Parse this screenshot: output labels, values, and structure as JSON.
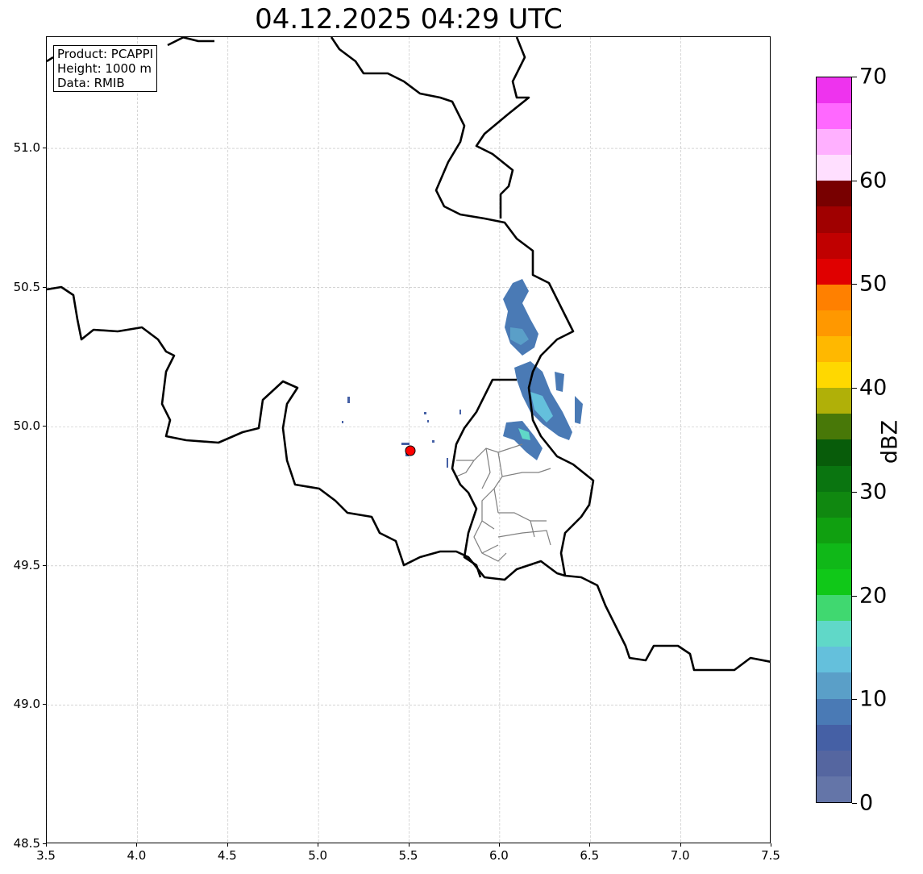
{
  "title": "04.12.2025 04:29 UTC",
  "info": {
    "product": "Product: PCAPPI",
    "height": "Height: 1000 m",
    "data": "Data: RMIB"
  },
  "map": {
    "lon_range": [
      3.5,
      7.5
    ],
    "lat_range": [
      48.5,
      51.4
    ],
    "x_ticks": [
      "3.5",
      "4.0",
      "4.5",
      "5.0",
      "5.5",
      "6.0",
      "6.5",
      "7.0",
      "7.5"
    ],
    "y_ticks": [
      "48.5",
      "49.0",
      "49.5",
      "50.0",
      "50.5",
      "51.0"
    ],
    "radar_site": {
      "lon": 5.505,
      "lat": 49.915,
      "color": "#ff0000"
    }
  },
  "colorbar": {
    "label": "dBZ",
    "min": 0,
    "max": 70,
    "ticks": [
      "0",
      "10",
      "20",
      "30",
      "40",
      "50",
      "60",
      "70"
    ],
    "colors": [
      "#6475a8",
      "#5566a0",
      "#4560a5",
      "#4a7ab5",
      "#5a9fc8",
      "#64c0dc",
      "#60d8c8",
      "#40d870",
      "#10c818",
      "#10b818",
      "#10a010",
      "#108810",
      "#0a7510",
      "#085c0a",
      "#487808",
      "#b0b008",
      "#ffd800",
      "#ffb800",
      "#ff9800",
      "#ff8000",
      "#e00000",
      "#c00000",
      "#a00000",
      "#780000",
      "#ffdfff",
      "#ffb0ff",
      "#ff68ff",
      "#ee33ee"
    ]
  }
}
